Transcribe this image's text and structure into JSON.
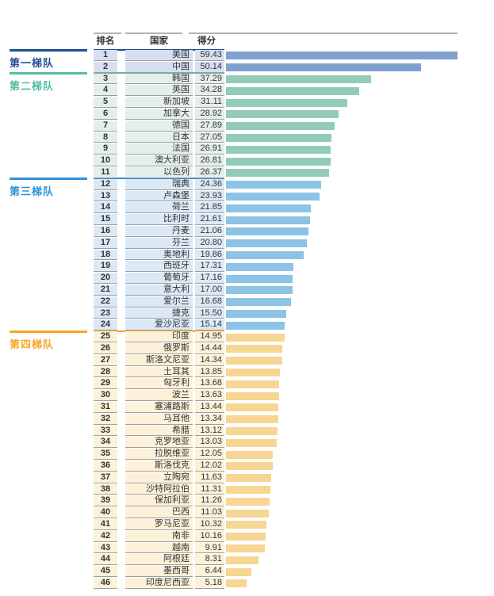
{
  "table": {
    "headers": {
      "rank": "排名",
      "country": "国家",
      "score": "得分"
    }
  },
  "tiers": [
    {
      "label": "第一梯队",
      "color": "#1d4e94",
      "row_bg": "#d9def0",
      "bar_color": "#7fa1cf",
      "start_rank": 1,
      "end_rank": 2
    },
    {
      "label": "第二梯队",
      "color": "#53bda1",
      "row_bg": "#e4efe9",
      "bar_color": "#93cbb9",
      "start_rank": 3,
      "end_rank": 11
    },
    {
      "label": "第三梯队",
      "color": "#2e92d8",
      "row_bg": "#dbe9f6",
      "bar_color": "#8cc3e7",
      "start_rank": 12,
      "end_rank": 24
    },
    {
      "label": "第四梯队",
      "color": "#f6a623",
      "row_bg": "#fdf2d9",
      "bar_color": "#f7d694",
      "start_rank": 25,
      "end_rank": 46
    }
  ],
  "rows": [
    {
      "rank": "1",
      "country": "美国",
      "score": "59.43"
    },
    {
      "rank": "2",
      "country": "中国",
      "score": "50.14"
    },
    {
      "rank": "3",
      "country": "韩国",
      "score": "37.29"
    },
    {
      "rank": "4",
      "country": "英国",
      "score": "34.28"
    },
    {
      "rank": "5",
      "country": "新加坡",
      "score": "31.11"
    },
    {
      "rank": "6",
      "country": "加拿大",
      "score": "28.92"
    },
    {
      "rank": "7",
      "country": "德国",
      "score": "27.89"
    },
    {
      "rank": "8",
      "country": "日本",
      "score": "27.05"
    },
    {
      "rank": "9",
      "country": "法国",
      "score": "26.91"
    },
    {
      "rank": "10",
      "country": "澳大利亚",
      "score": "26.81"
    },
    {
      "rank": "11",
      "country": "以色列",
      "score": "26.37"
    },
    {
      "rank": "12",
      "country": "瑞典",
      "score": "24.36"
    },
    {
      "rank": "13",
      "country": "卢森堡",
      "score": "23.93"
    },
    {
      "rank": "14",
      "country": "荷兰",
      "score": "21.85"
    },
    {
      "rank": "15",
      "country": "比利时",
      "score": "21.61"
    },
    {
      "rank": "16",
      "country": "丹麦",
      "score": "21.06"
    },
    {
      "rank": "17",
      "country": "芬兰",
      "score": "20.80"
    },
    {
      "rank": "18",
      "country": "奥地利",
      "score": "19.86"
    },
    {
      "rank": "19",
      "country": "西班牙",
      "score": "17.31"
    },
    {
      "rank": "20",
      "country": "葡萄牙",
      "score": "17.16"
    },
    {
      "rank": "21",
      "country": "意大利",
      "score": "17.00"
    },
    {
      "rank": "22",
      "country": "爱尔兰",
      "score": "16.68"
    },
    {
      "rank": "23",
      "country": "捷克",
      "score": "15.50"
    },
    {
      "rank": "24",
      "country": "爱沙尼亚",
      "score": "15.14"
    },
    {
      "rank": "25",
      "country": "印度",
      "score": "14.95"
    },
    {
      "rank": "26",
      "country": "俄罗斯",
      "score": "14.44"
    },
    {
      "rank": "27",
      "country": "斯洛文尼亚",
      "score": "14.34"
    },
    {
      "rank": "28",
      "country": "土耳其",
      "score": "13.85"
    },
    {
      "rank": "29",
      "country": "匈牙利",
      "score": "13.68"
    },
    {
      "rank": "30",
      "country": "波兰",
      "score": "13.63"
    },
    {
      "rank": "31",
      "country": "塞浦路斯",
      "score": "13.44"
    },
    {
      "rank": "32",
      "country": "马耳他",
      "score": "13.34"
    },
    {
      "rank": "33",
      "country": "希腊",
      "score": "13.12"
    },
    {
      "rank": "34",
      "country": "克罗地亚",
      "score": "13.03"
    },
    {
      "rank": "35",
      "country": "拉脱维亚",
      "score": "12.05"
    },
    {
      "rank": "36",
      "country": "斯洛伐克",
      "score": "12.02"
    },
    {
      "rank": "37",
      "country": "立陶宛",
      "score": "11.63"
    },
    {
      "rank": "38",
      "country": "沙特阿拉伯",
      "score": "11.31"
    },
    {
      "rank": "39",
      "country": "保加利亚",
      "score": "11.26"
    },
    {
      "rank": "40",
      "country": "巴西",
      "score": "11.03"
    },
    {
      "rank": "41",
      "country": "罗马尼亚",
      "score": "10.32"
    },
    {
      "rank": "42",
      "country": "南非",
      "score": "10.16"
    },
    {
      "rank": "43",
      "country": "越南",
      "score": "9.91"
    },
    {
      "rank": "44",
      "country": "阿根廷",
      "score": "8.31"
    },
    {
      "rank": "45",
      "country": "墨西哥",
      "score": "6.44"
    },
    {
      "rank": "46",
      "country": "印度尼西亚",
      "score": "5.18"
    }
  ],
  "chart_data": {
    "type": "bar",
    "orientation": "horizontal",
    "title": "",
    "xlabel": "得分",
    "ylabel": "国家",
    "xlim": [
      0,
      59.43
    ],
    "grid": false,
    "legend": "none",
    "columns": [
      "排名",
      "国家",
      "得分"
    ],
    "categories": [
      "美国",
      "中国",
      "韩国",
      "英国",
      "新加坡",
      "加拿大",
      "德国",
      "日本",
      "法国",
      "澳大利亚",
      "以色列",
      "瑞典",
      "卢森堡",
      "荷兰",
      "比利时",
      "丹麦",
      "芬兰",
      "奥地利",
      "西班牙",
      "葡萄牙",
      "意大利",
      "爱尔兰",
      "捷克",
      "爱沙尼亚",
      "印度",
      "俄罗斯",
      "斯洛文尼亚",
      "土耳其",
      "匈牙利",
      "波兰",
      "塞浦路斯",
      "马耳他",
      "希腊",
      "克罗地亚",
      "拉脱维亚",
      "斯洛伐克",
      "立陶宛",
      "沙特阿拉伯",
      "保加利亚",
      "巴西",
      "罗马尼亚",
      "南非",
      "越南",
      "阿根廷",
      "墨西哥",
      "印度尼西亚"
    ],
    "values": [
      59.43,
      50.14,
      37.29,
      34.28,
      31.11,
      28.92,
      27.89,
      27.05,
      26.91,
      26.81,
      26.37,
      24.36,
      23.93,
      21.85,
      21.61,
      21.06,
      20.8,
      19.86,
      17.31,
      17.16,
      17.0,
      16.68,
      15.5,
      15.14,
      14.95,
      14.44,
      14.34,
      13.85,
      13.68,
      13.63,
      13.44,
      13.34,
      13.12,
      13.03,
      12.05,
      12.02,
      11.63,
      11.31,
      11.26,
      11.03,
      10.32,
      10.16,
      9.91,
      8.31,
      6.44,
      5.18
    ],
    "groups": [
      {
        "name": "第一梯队",
        "ranks": "1-2",
        "color": "#7fa1cf"
      },
      {
        "name": "第二梯队",
        "ranks": "3-11",
        "color": "#93cbb9"
      },
      {
        "name": "第三梯队",
        "ranks": "12-24",
        "color": "#8cc3e7"
      },
      {
        "name": "第四梯队",
        "ranks": "25-46",
        "color": "#f7d694"
      }
    ]
  }
}
